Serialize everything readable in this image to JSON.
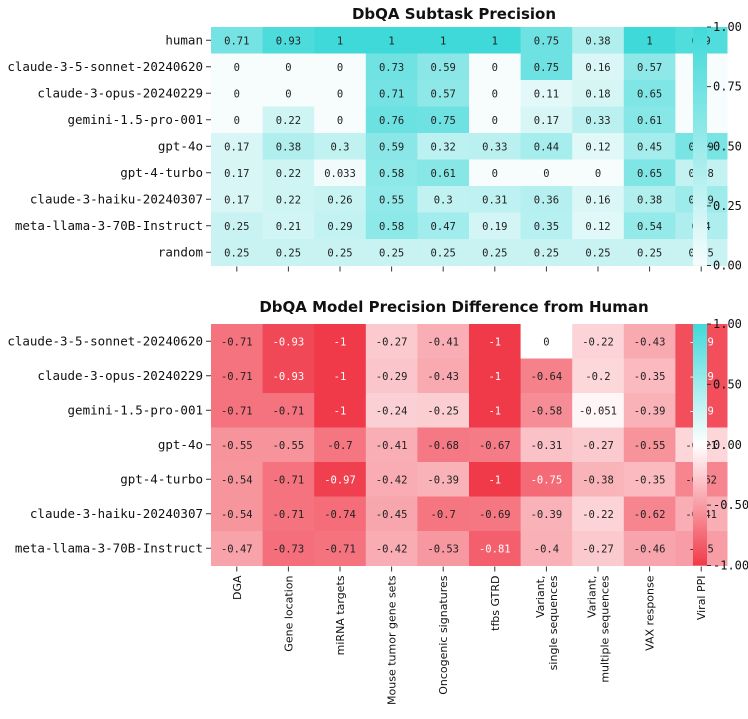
{
  "chart_data": [
    {
      "type": "heatmap",
      "title": "DbQA Subtask Precision",
      "rows": [
        "human",
        "claude-3-5-sonnet-20240620",
        "claude-3-opus-20240229",
        "gemini-1.5-pro-001",
        "gpt-4o",
        "gpt-4-turbo",
        "claude-3-haiku-20240307",
        "meta-llama-3-70B-Instruct",
        "random"
      ],
      "columns": [
        "DGA",
        "Gene location",
        "miRNA targets",
        "Mouse tumor gene sets",
        "Oncogenic signatures",
        "tfbs GTRD",
        "Variant,\nsingle sequences",
        "Variant,\nmultiple sequences",
        "VAX response",
        "Viral PPI"
      ],
      "values": [
        [
          0.71,
          0.93,
          1,
          1,
          1,
          1,
          0.75,
          0.38,
          1,
          0.9
        ],
        [
          0,
          0,
          0,
          0.73,
          0.59,
          0,
          0.75,
          0.16,
          0.57,
          0
        ],
        [
          0,
          0,
          0,
          0.71,
          0.57,
          0,
          0.11,
          0.18,
          0.65,
          0
        ],
        [
          0,
          0.22,
          0,
          0.76,
          0.75,
          0,
          0.17,
          0.33,
          0.61,
          0
        ],
        [
          0.17,
          0.38,
          0.3,
          0.59,
          0.32,
          0.33,
          0.44,
          0.12,
          0.45,
          0.69
        ],
        [
          0.17,
          0.22,
          0.033,
          0.58,
          0.61,
          0,
          0,
          0,
          0.65,
          0.28
        ],
        [
          0.17,
          0.22,
          0.26,
          0.55,
          0.3,
          0.31,
          0.36,
          0.16,
          0.38,
          0.49
        ],
        [
          0.25,
          0.21,
          0.29,
          0.58,
          0.47,
          0.19,
          0.35,
          0.12,
          0.54,
          0.4
        ],
        [
          0.25,
          0.25,
          0.25,
          0.25,
          0.25,
          0.25,
          0.25,
          0.25,
          0.25,
          0.25
        ]
      ],
      "vmin": 0,
      "vmax": 1,
      "colorbar_ticks": [
        0,
        0.25,
        0.5,
        0.75,
        1
      ],
      "colorbar_tick_labels": [
        "0.00",
        "0.25",
        "0.50",
        "0.75",
        "1.00"
      ],
      "colormap": {
        "low": "#f7fcfc",
        "high": "#40d9d9"
      }
    },
    {
      "type": "heatmap",
      "title": "DbQA Model Precision Difference from Human",
      "rows": [
        "claude-3-5-sonnet-20240620",
        "claude-3-opus-20240229",
        "gemini-1.5-pro-001",
        "gpt-4o",
        "gpt-4-turbo",
        "claude-3-haiku-20240307",
        "meta-llama-3-70B-Instruct"
      ],
      "columns": [
        "DGA",
        "Gene location",
        "miRNA targets",
        "Mouse tumor gene sets",
        "Oncogenic signatures",
        "tfbs GTRD",
        "Variant,\nsingle sequences",
        "Variant,\nmultiple sequences",
        "VAX response",
        "Viral PPI"
      ],
      "values": [
        [
          -0.71,
          -0.93,
          -1,
          -0.27,
          -0.41,
          -1,
          0,
          -0.22,
          -0.43,
          -0.9
        ],
        [
          -0.71,
          -0.93,
          -1,
          -0.29,
          -0.43,
          -1,
          -0.64,
          -0.2,
          -0.35,
          -0.9
        ],
        [
          -0.71,
          -0.71,
          -1,
          -0.24,
          -0.25,
          -1,
          -0.58,
          -0.051,
          -0.39,
          -0.9
        ],
        [
          -0.55,
          -0.55,
          -0.7,
          -0.41,
          -0.68,
          -0.67,
          -0.31,
          -0.27,
          -0.55,
          -0.21
        ],
        [
          -0.54,
          -0.71,
          -0.97,
          -0.42,
          -0.39,
          -1,
          -0.75,
          -0.38,
          -0.35,
          -0.62
        ],
        [
          -0.54,
          -0.71,
          -0.74,
          -0.45,
          -0.7,
          -0.69,
          -0.39,
          -0.22,
          -0.62,
          -0.41
        ],
        [
          -0.47,
          -0.73,
          -0.71,
          -0.42,
          -0.53,
          -0.81,
          -0.4,
          -0.27,
          -0.46,
          -0.5
        ]
      ],
      "vmin": -1,
      "vmax": 1,
      "colorbar_ticks": [
        -1,
        -0.5,
        0,
        0.5,
        1
      ],
      "colorbar_tick_labels": [
        "-1.00",
        "-0.50",
        "0.00",
        "0.50",
        "1.00"
      ],
      "colormap": {
        "low": "#f03a4a",
        "mid": "#ffffff",
        "high": "#40d9d9"
      }
    }
  ]
}
